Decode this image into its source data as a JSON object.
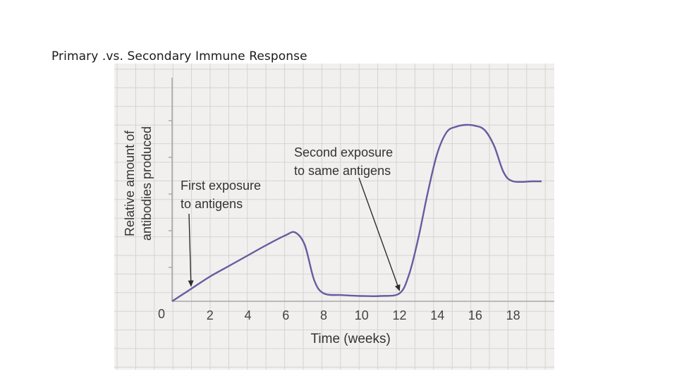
{
  "slide": {
    "title": "Primary .vs. Secondary Immune Response"
  },
  "chart_data": {
    "type": "line",
    "title": "",
    "xlabel": "Time (weeks)",
    "ylabel_lines": [
      "Relative amount of",
      "antibodies produced"
    ],
    "xlim": [
      0,
      19.5
    ],
    "ylim": [
      0,
      10
    ],
    "origin_label": "0",
    "x_ticks": [
      2,
      4,
      6,
      8,
      10,
      12,
      14,
      16,
      18
    ],
    "grid": true,
    "series": [
      {
        "color": "#6a5aa0",
        "x": [
          0,
          1,
          2,
          3,
          4,
          5,
          6,
          6.5,
          7,
          7.5,
          8,
          9,
          10,
          11,
          12,
          12.5,
          13,
          13.5,
          14,
          14.5,
          15,
          15.5,
          16,
          16.5,
          17,
          17.5,
          18,
          19,
          19.5
        ],
        "y": [
          0,
          0.7,
          1.4,
          2.0,
          2.6,
          3.2,
          3.75,
          3.9,
          3.2,
          1.2,
          0.45,
          0.35,
          0.3,
          0.3,
          0.45,
          1.5,
          3.6,
          6.2,
          8.4,
          9.6,
          9.9,
          10.0,
          9.95,
          9.7,
          8.8,
          7.3,
          6.8,
          6.8,
          6.8
        ]
      }
    ],
    "annotations": [
      {
        "lines": [
          "First exposure",
          "to antigens"
        ],
        "x": 1,
        "y": 0.7
      },
      {
        "lines": [
          "Second exposure",
          "to same antigens"
        ],
        "x": 12,
        "y": 0.45
      }
    ]
  }
}
